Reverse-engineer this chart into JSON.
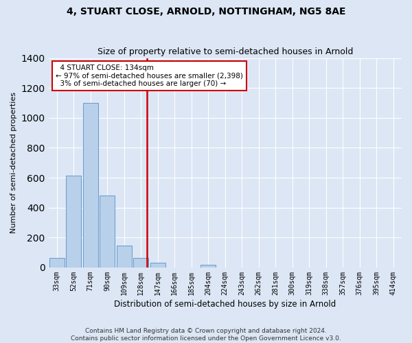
{
  "title": "4, STUART CLOSE, ARNOLD, NOTTINGHAM, NG5 8AE",
  "subtitle": "Size of property relative to semi-detached houses in Arnold",
  "xlabel": "Distribution of semi-detached houses by size in Arnold",
  "ylabel": "Number of semi-detached properties",
  "bar_labels": [
    "33sqm",
    "52sqm",
    "71sqm",
    "90sqm",
    "109sqm",
    "128sqm",
    "147sqm",
    "166sqm",
    "185sqm",
    "204sqm",
    "224sqm",
    "243sqm",
    "262sqm",
    "281sqm",
    "300sqm",
    "319sqm",
    "338sqm",
    "357sqm",
    "376sqm",
    "395sqm",
    "414sqm"
  ],
  "bar_values": [
    62,
    612,
    1100,
    480,
    145,
    62,
    30,
    0,
    0,
    20,
    0,
    0,
    0,
    0,
    0,
    0,
    0,
    0,
    0,
    0,
    0
  ],
  "property_label": "4 STUART CLOSE: 134sqm",
  "pct_smaller": 97,
  "n_smaller": 2398,
  "pct_larger": 3,
  "n_larger": 70,
  "vline_x": 5.35,
  "bar_color": "#b8d0ea",
  "bar_edge_color": "#6699cc",
  "vline_color": "#cc0000",
  "annotation_box_color": "#cc0000",
  "bg_color": "#dce6f5",
  "grid_color": "#ffffff",
  "footer_line1": "Contains HM Land Registry data © Crown copyright and database right 2024.",
  "footer_line2": "Contains public sector information licensed under the Open Government Licence v3.0.",
  "ylim": [
    0,
    1400
  ],
  "title_fontsize": 10,
  "subtitle_fontsize": 9,
  "ylabel_fontsize": 8,
  "xlabel_fontsize": 8.5,
  "tick_fontsize": 7,
  "annot_fontsize": 7.5,
  "footer_fontsize": 6.5
}
